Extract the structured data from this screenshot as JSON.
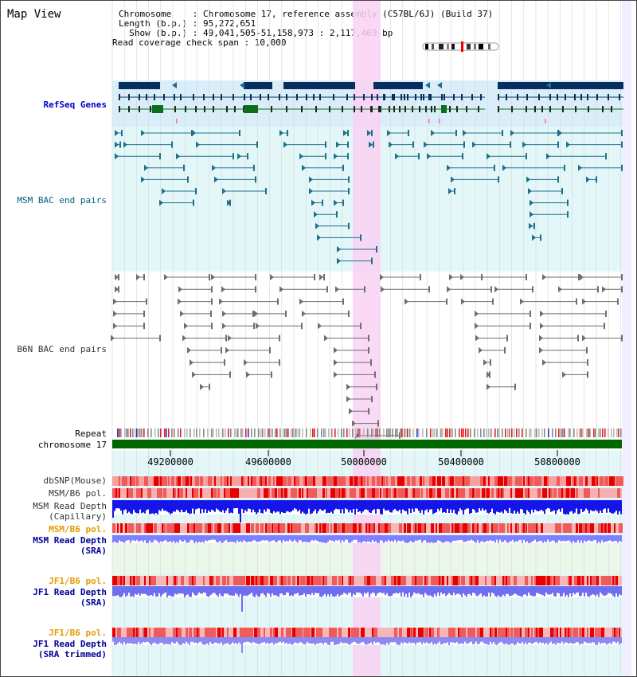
{
  "page_title": "Map View",
  "info": {
    "chromosome_line": "Chromosome    : Chromosome 17, reference assembly (C57BL/6J) (Build 37)",
    "length_line": "Length (b.p.) : 95,272,651",
    "show_line": "  Show (b.p.) : 49,041,505-51,158,973 : 2,117,469 bp",
    "coverage_line": "Read coverage check span : 10,000"
  },
  "tracks": {
    "refseq": "RefSeq Genes",
    "msm_bac": "MSM BAC end pairs",
    "b6n_bac": "B6N BAC end pairs",
    "repeat": "Repeat",
    "chromosome": "chromosome 17",
    "dbsnp": "dbSNP(Mouse)",
    "msm_b6_pol_1": "MSM/B6 pol.",
    "msm_read_depth_cap_1": "MSM Read Depth",
    "msm_read_depth_cap_2": "(Capillary)",
    "msm_b6_pol_2": "MSM/B6 pol.",
    "msm_read_depth_sra_1": "MSM Read Depth",
    "msm_read_depth_sra_2": "(SRA)",
    "jf1_b6_pol_1": "JF1/B6 pol.",
    "jf1_read_depth_sra_1": "JF1 Read Depth",
    "jf1_read_depth_sra_2": "(SRA)",
    "jf1_b6_pol_2": "JF1/B6 pol.",
    "jf1_read_depth_trim_1": "JF1 Read Depth",
    "jf1_read_depth_trim_2": "(SRA trimmed)"
  },
  "axis_ticks": [
    "49200000",
    "49600000",
    "50000000",
    "50400000",
    "50800000"
  ],
  "colors": {
    "refseq_bg": "#d9eef9",
    "bac_bg": "#e4f7f8",
    "highlight": "#f9d2f4",
    "gene_navy": "#062e5e",
    "gene_green": "#0b6e1a",
    "msm_pair": "#1f6f8b",
    "b6n_pair": "#6e6e6e",
    "chromosome_bar": "#006600",
    "depth_blue": "#1010e8",
    "depth_light": "#7f7fff",
    "snp_red": "#e83030"
  }
}
